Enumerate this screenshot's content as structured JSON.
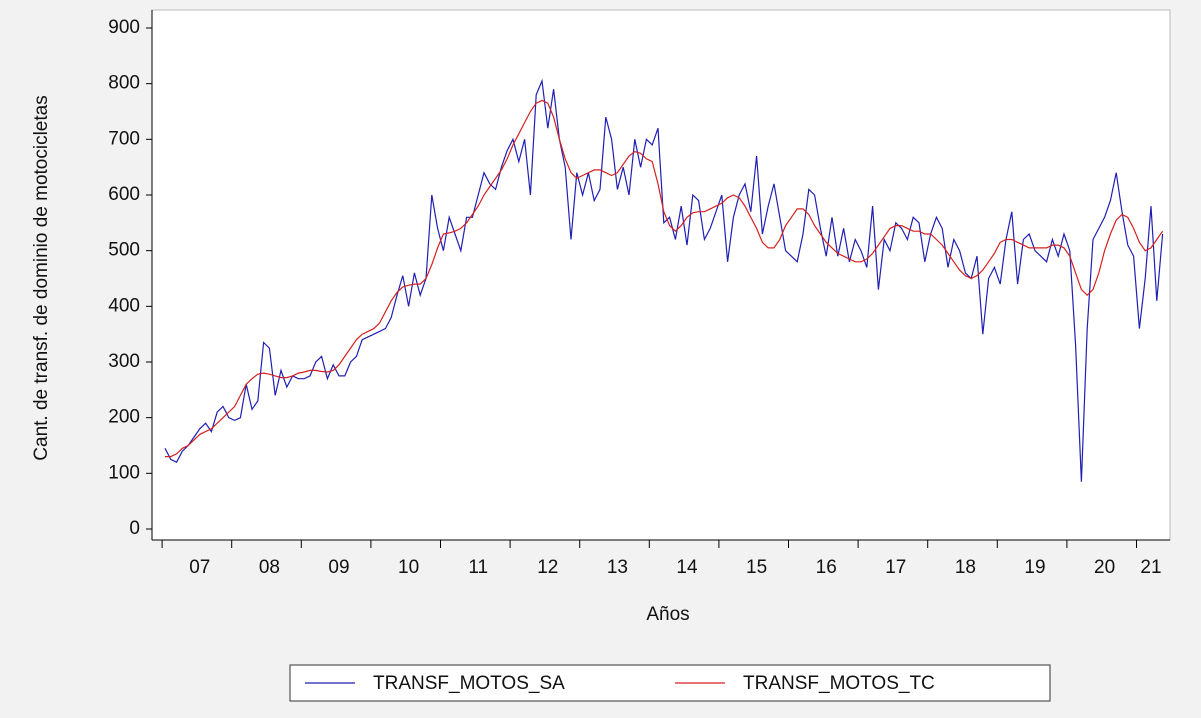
{
  "chart_data": {
    "type": "line",
    "y_label": "Cant. de transf. de dominio de motocicletas",
    "x_label": "Años",
    "ylim": [
      0,
      900
    ],
    "yticks": [
      0,
      100,
      200,
      300,
      400,
      500,
      600,
      700,
      800,
      900
    ],
    "categories": [
      null,
      null,
      null,
      null,
      null,
      null,
      "07",
      null,
      null,
      null,
      null,
      null,
      null,
      null,
      null,
      null,
      null,
      null,
      "08",
      null,
      null,
      null,
      null,
      null,
      null,
      null,
      null,
      null,
      null,
      null,
      "09",
      null,
      null,
      null,
      null,
      null,
      null,
      null,
      null,
      null,
      null,
      null,
      "10",
      null,
      null,
      null,
      null,
      null,
      null,
      null,
      null,
      null,
      null,
      null,
      "11",
      null,
      null,
      null,
      null,
      null,
      null,
      null,
      null,
      null,
      null,
      null,
      "12",
      null,
      null,
      null,
      null,
      null,
      null,
      null,
      null,
      null,
      null,
      null,
      "13",
      null,
      null,
      null,
      null,
      null,
      null,
      null,
      null,
      null,
      null,
      null,
      "14",
      null,
      null,
      null,
      null,
      null,
      null,
      null,
      null,
      null,
      null,
      null,
      "15",
      null,
      null,
      null,
      null,
      null,
      null,
      null,
      null,
      null,
      null,
      null,
      "16",
      null,
      null,
      null,
      null,
      null,
      null,
      null,
      null,
      null,
      null,
      null,
      "17",
      null,
      null,
      null,
      null,
      null,
      null,
      null,
      null,
      null,
      null,
      null,
      "18",
      null,
      null,
      null,
      null,
      null,
      null,
      null,
      null,
      null,
      null,
      null,
      "19",
      null,
      null,
      null,
      null,
      null,
      null,
      null,
      null,
      null,
      null,
      null,
      "20",
      null,
      null,
      null,
      null,
      null,
      null,
      null,
      "21",
      null,
      null
    ],
    "series": [
      {
        "name": "TRANSF_MOTOS_SA",
        "color": "#1f1fb4",
        "values": [
          145,
          125,
          120,
          140,
          150,
          165,
          180,
          190,
          175,
          210,
          220,
          200,
          195,
          200,
          260,
          215,
          230,
          335,
          325,
          240,
          285,
          255,
          275,
          270,
          270,
          275,
          300,
          310,
          270,
          295,
          275,
          275,
          300,
          310,
          340,
          345,
          350,
          355,
          360,
          380,
          420,
          455,
          400,
          460,
          420,
          450,
          600,
          540,
          500,
          560,
          530,
          500,
          560,
          560,
          600,
          640,
          620,
          610,
          650,
          680,
          700,
          660,
          700,
          600,
          780,
          805,
          720,
          790,
          700,
          650,
          520,
          640,
          600,
          640,
          590,
          610,
          740,
          700,
          610,
          650,
          600,
          700,
          650,
          700,
          690,
          720,
          550,
          560,
          520,
          580,
          510,
          600,
          590,
          520,
          540,
          570,
          600,
          480,
          560,
          600,
          620,
          570,
          670,
          530,
          580,
          620,
          560,
          500,
          490,
          480,
          530,
          610,
          600,
          540,
          490,
          560,
          490,
          540,
          480,
          520,
          500,
          470,
          580,
          430,
          520,
          500,
          550,
          540,
          520,
          560,
          550,
          480,
          530,
          560,
          540,
          470,
          520,
          500,
          460,
          450,
          490,
          350,
          450,
          470,
          440,
          520,
          570,
          440,
          520,
          530,
          500,
          490,
          480,
          520,
          490,
          530,
          500,
          330,
          85,
          360,
          520,
          540,
          560,
          590,
          640,
          570,
          510,
          490,
          360,
          450,
          580,
          410,
          530
        ]
      },
      {
        "name": "TRANSF_MOTOS_TC",
        "color": "#d62020",
        "values": [
          130,
          130,
          135,
          145,
          150,
          160,
          170,
          175,
          180,
          190,
          200,
          210,
          220,
          240,
          260,
          270,
          278,
          280,
          278,
          275,
          272,
          272,
          275,
          280,
          282,
          285,
          285,
          283,
          282,
          285,
          295,
          310,
          325,
          340,
          350,
          355,
          360,
          370,
          390,
          410,
          425,
          435,
          438,
          440,
          440,
          450,
          475,
          505,
          530,
          532,
          535,
          540,
          550,
          565,
          580,
          600,
          615,
          630,
          645,
          665,
          690,
          710,
          730,
          750,
          765,
          770,
          765,
          740,
          700,
          665,
          640,
          630,
          635,
          640,
          645,
          645,
          640,
          635,
          640,
          655,
          670,
          678,
          675,
          665,
          660,
          620,
          570,
          545,
          535,
          545,
          560,
          568,
          570,
          570,
          575,
          580,
          585,
          595,
          600,
          595,
          580,
          560,
          540,
          515,
          505,
          505,
          520,
          545,
          560,
          575,
          575,
          565,
          545,
          530,
          515,
          505,
          495,
          490,
          485,
          480,
          480,
          485,
          495,
          510,
          525,
          540,
          545,
          545,
          540,
          535,
          535,
          530,
          530,
          520,
          510,
          495,
          480,
          465,
          455,
          450,
          455,
          465,
          480,
          495,
          515,
          520,
          520,
          515,
          510,
          505,
          505,
          505,
          505,
          510,
          510,
          505,
          490,
          460,
          430,
          420,
          430,
          460,
          500,
          530,
          555,
          565,
          560,
          540,
          515,
          500,
          505,
          520,
          535
        ]
      }
    ]
  }
}
